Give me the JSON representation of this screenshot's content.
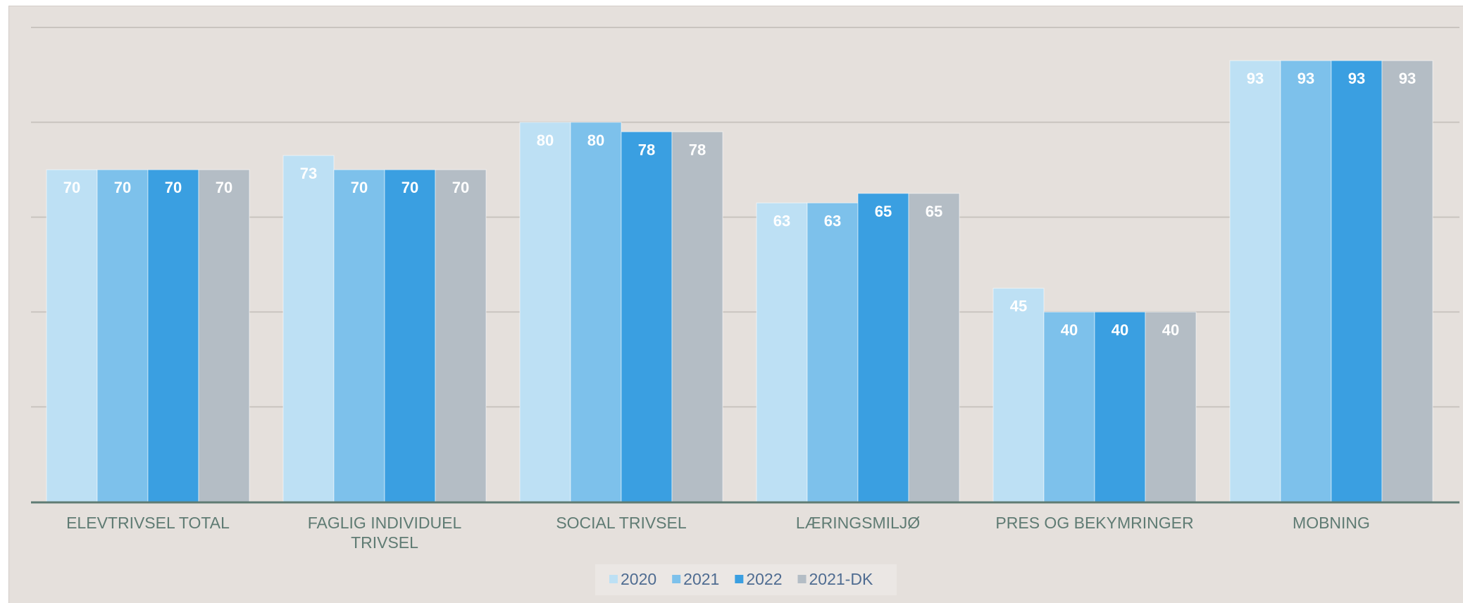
{
  "chart_data": {
    "type": "bar",
    "categories": [
      "ELEVTRIVSEL TOTAL",
      "FAGLIG INDIVIDUEL TRIVSEL",
      "SOCIAL TRIVSEL",
      "LÆRINGSMILJØ",
      "PRES OG BEKYMRINGER",
      "MOBNING"
    ],
    "category_lines": [
      [
        "ELEVTRIVSEL TOTAL"
      ],
      [
        "FAGLIG INDIVIDUEL",
        "TRIVSEL"
      ],
      [
        "SOCIAL TRIVSEL"
      ],
      [
        "LÆRINGSMILJØ"
      ],
      [
        "PRES OG BEKYMRINGER"
      ],
      [
        "MOBNING"
      ]
    ],
    "series": [
      {
        "name": "2020",
        "color": "#bde0f4",
        "values": [
          70,
          73,
          80,
          63,
          45,
          93
        ]
      },
      {
        "name": "2021",
        "color": "#7dc1eb",
        "values": [
          70,
          70,
          80,
          63,
          40,
          93
        ]
      },
      {
        "name": "2022",
        "color": "#3a9fe1",
        "values": [
          70,
          70,
          78,
          65,
          40,
          93
        ]
      },
      {
        "name": "2021-DK",
        "color": "#b4bdc5",
        "values": [
          70,
          70,
          78,
          65,
          40,
          93
        ]
      }
    ],
    "ylim": [
      0,
      100
    ],
    "grid": true,
    "legend_position": "bottom",
    "title": "",
    "xlabel": "",
    "ylabel": ""
  },
  "colors": {
    "background": "#e5e0dc",
    "gridline": "#c9c4bf",
    "axis": "#5f7b73",
    "category_text": "#5f7b73",
    "legend_text": "#4f6c91",
    "data_label": "#ffffff"
  }
}
